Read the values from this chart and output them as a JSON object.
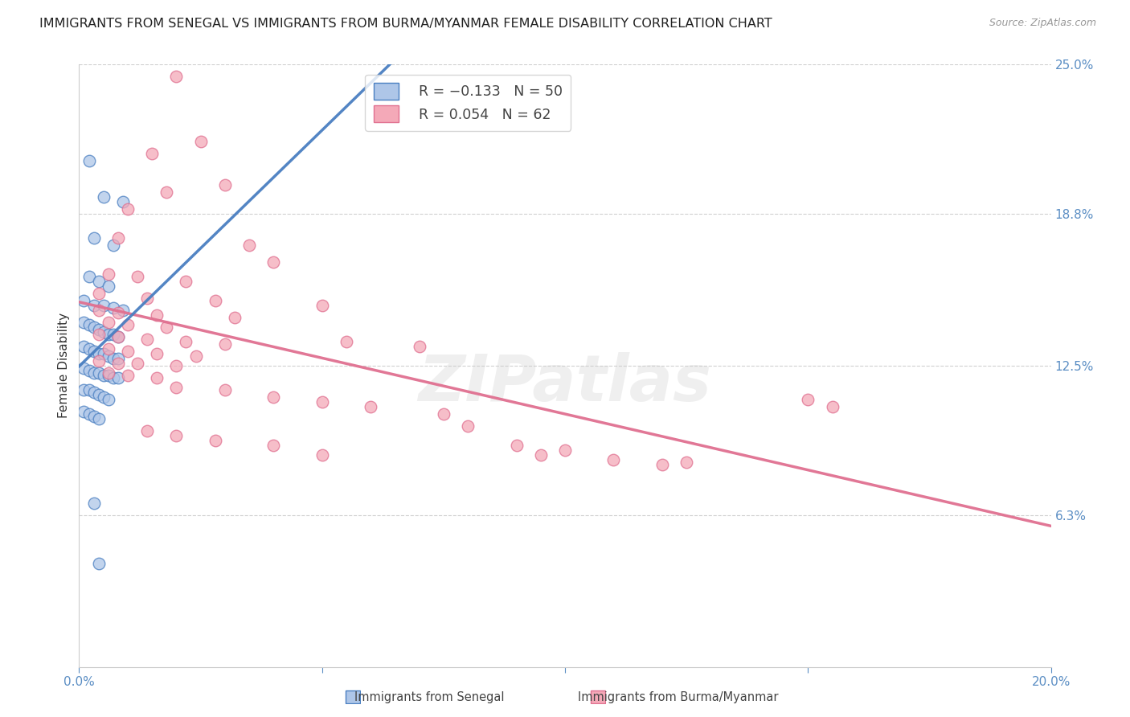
{
  "title": "IMMIGRANTS FROM SENEGAL VS IMMIGRANTS FROM BURMA/MYANMAR FEMALE DISABILITY CORRELATION CHART",
  "source": "Source: ZipAtlas.com",
  "ylabel_label": "Female Disability",
  "xlim": [
    0.0,
    0.2
  ],
  "ylim": [
    0.0,
    0.25
  ],
  "ytick_labels_right": [
    "25.0%",
    "18.8%",
    "12.5%",
    "6.3%"
  ],
  "ytick_positions_right": [
    0.25,
    0.188,
    0.125,
    0.063
  ],
  "grid_color": "#d0d0d0",
  "background_color": "#ffffff",
  "senegal_color": "#aec6e8",
  "burma_color": "#f4a9b8",
  "senegal_line_color": "#4a7fc1",
  "burma_line_color": "#e07090",
  "watermark": "ZIPatlas",
  "senegal_points": [
    [
      0.002,
      0.21
    ],
    [
      0.005,
      0.195
    ],
    [
      0.009,
      0.193
    ],
    [
      0.003,
      0.178
    ],
    [
      0.007,
      0.175
    ],
    [
      0.002,
      0.162
    ],
    [
      0.004,
      0.16
    ],
    [
      0.006,
      0.158
    ],
    [
      0.001,
      0.152
    ],
    [
      0.003,
      0.15
    ],
    [
      0.005,
      0.15
    ],
    [
      0.007,
      0.149
    ],
    [
      0.009,
      0.148
    ],
    [
      0.001,
      0.143
    ],
    [
      0.002,
      0.142
    ],
    [
      0.003,
      0.141
    ],
    [
      0.004,
      0.14
    ],
    [
      0.005,
      0.139
    ],
    [
      0.006,
      0.138
    ],
    [
      0.007,
      0.138
    ],
    [
      0.008,
      0.137
    ],
    [
      0.001,
      0.133
    ],
    [
      0.002,
      0.132
    ],
    [
      0.003,
      0.131
    ],
    [
      0.004,
      0.13
    ],
    [
      0.005,
      0.13
    ],
    [
      0.006,
      0.129
    ],
    [
      0.007,
      0.128
    ],
    [
      0.008,
      0.128
    ],
    [
      0.001,
      0.124
    ],
    [
      0.002,
      0.123
    ],
    [
      0.003,
      0.122
    ],
    [
      0.004,
      0.122
    ],
    [
      0.005,
      0.121
    ],
    [
      0.006,
      0.121
    ],
    [
      0.007,
      0.12
    ],
    [
      0.008,
      0.12
    ],
    [
      0.001,
      0.115
    ],
    [
      0.002,
      0.115
    ],
    [
      0.003,
      0.114
    ],
    [
      0.004,
      0.113
    ],
    [
      0.005,
      0.112
    ],
    [
      0.006,
      0.111
    ],
    [
      0.001,
      0.106
    ],
    [
      0.002,
      0.105
    ],
    [
      0.003,
      0.104
    ],
    [
      0.004,
      0.103
    ],
    [
      0.003,
      0.068
    ],
    [
      0.004,
      0.043
    ]
  ],
  "burma_points": [
    [
      0.02,
      0.245
    ],
    [
      0.025,
      0.218
    ],
    [
      0.015,
      0.213
    ],
    [
      0.03,
      0.2
    ],
    [
      0.018,
      0.197
    ],
    [
      0.01,
      0.19
    ],
    [
      0.008,
      0.178
    ],
    [
      0.035,
      0.175
    ],
    [
      0.04,
      0.168
    ],
    [
      0.006,
      0.163
    ],
    [
      0.012,
      0.162
    ],
    [
      0.022,
      0.16
    ],
    [
      0.004,
      0.155
    ],
    [
      0.014,
      0.153
    ],
    [
      0.028,
      0.152
    ],
    [
      0.05,
      0.15
    ],
    [
      0.004,
      0.148
    ],
    [
      0.008,
      0.147
    ],
    [
      0.016,
      0.146
    ],
    [
      0.032,
      0.145
    ],
    [
      0.006,
      0.143
    ],
    [
      0.01,
      0.142
    ],
    [
      0.018,
      0.141
    ],
    [
      0.004,
      0.138
    ],
    [
      0.008,
      0.137
    ],
    [
      0.014,
      0.136
    ],
    [
      0.022,
      0.135
    ],
    [
      0.03,
      0.134
    ],
    [
      0.006,
      0.132
    ],
    [
      0.01,
      0.131
    ],
    [
      0.016,
      0.13
    ],
    [
      0.024,
      0.129
    ],
    [
      0.004,
      0.127
    ],
    [
      0.008,
      0.126
    ],
    [
      0.012,
      0.126
    ],
    [
      0.02,
      0.125
    ],
    [
      0.006,
      0.122
    ],
    [
      0.01,
      0.121
    ],
    [
      0.016,
      0.12
    ],
    [
      0.02,
      0.116
    ],
    [
      0.03,
      0.115
    ],
    [
      0.04,
      0.112
    ],
    [
      0.05,
      0.11
    ],
    [
      0.055,
      0.135
    ],
    [
      0.07,
      0.133
    ],
    [
      0.06,
      0.108
    ],
    [
      0.075,
      0.105
    ],
    [
      0.08,
      0.1
    ],
    [
      0.09,
      0.092
    ],
    [
      0.095,
      0.088
    ],
    [
      0.1,
      0.09
    ],
    [
      0.11,
      0.086
    ],
    [
      0.12,
      0.084
    ],
    [
      0.125,
      0.085
    ],
    [
      0.15,
      0.111
    ],
    [
      0.155,
      0.108
    ],
    [
      0.014,
      0.098
    ],
    [
      0.02,
      0.096
    ],
    [
      0.028,
      0.094
    ],
    [
      0.04,
      0.092
    ],
    [
      0.05,
      0.088
    ]
  ],
  "title_fontsize": 11.5,
  "axis_label_fontsize": 11,
  "tick_fontsize": 11,
  "legend_fontsize": 12.5
}
